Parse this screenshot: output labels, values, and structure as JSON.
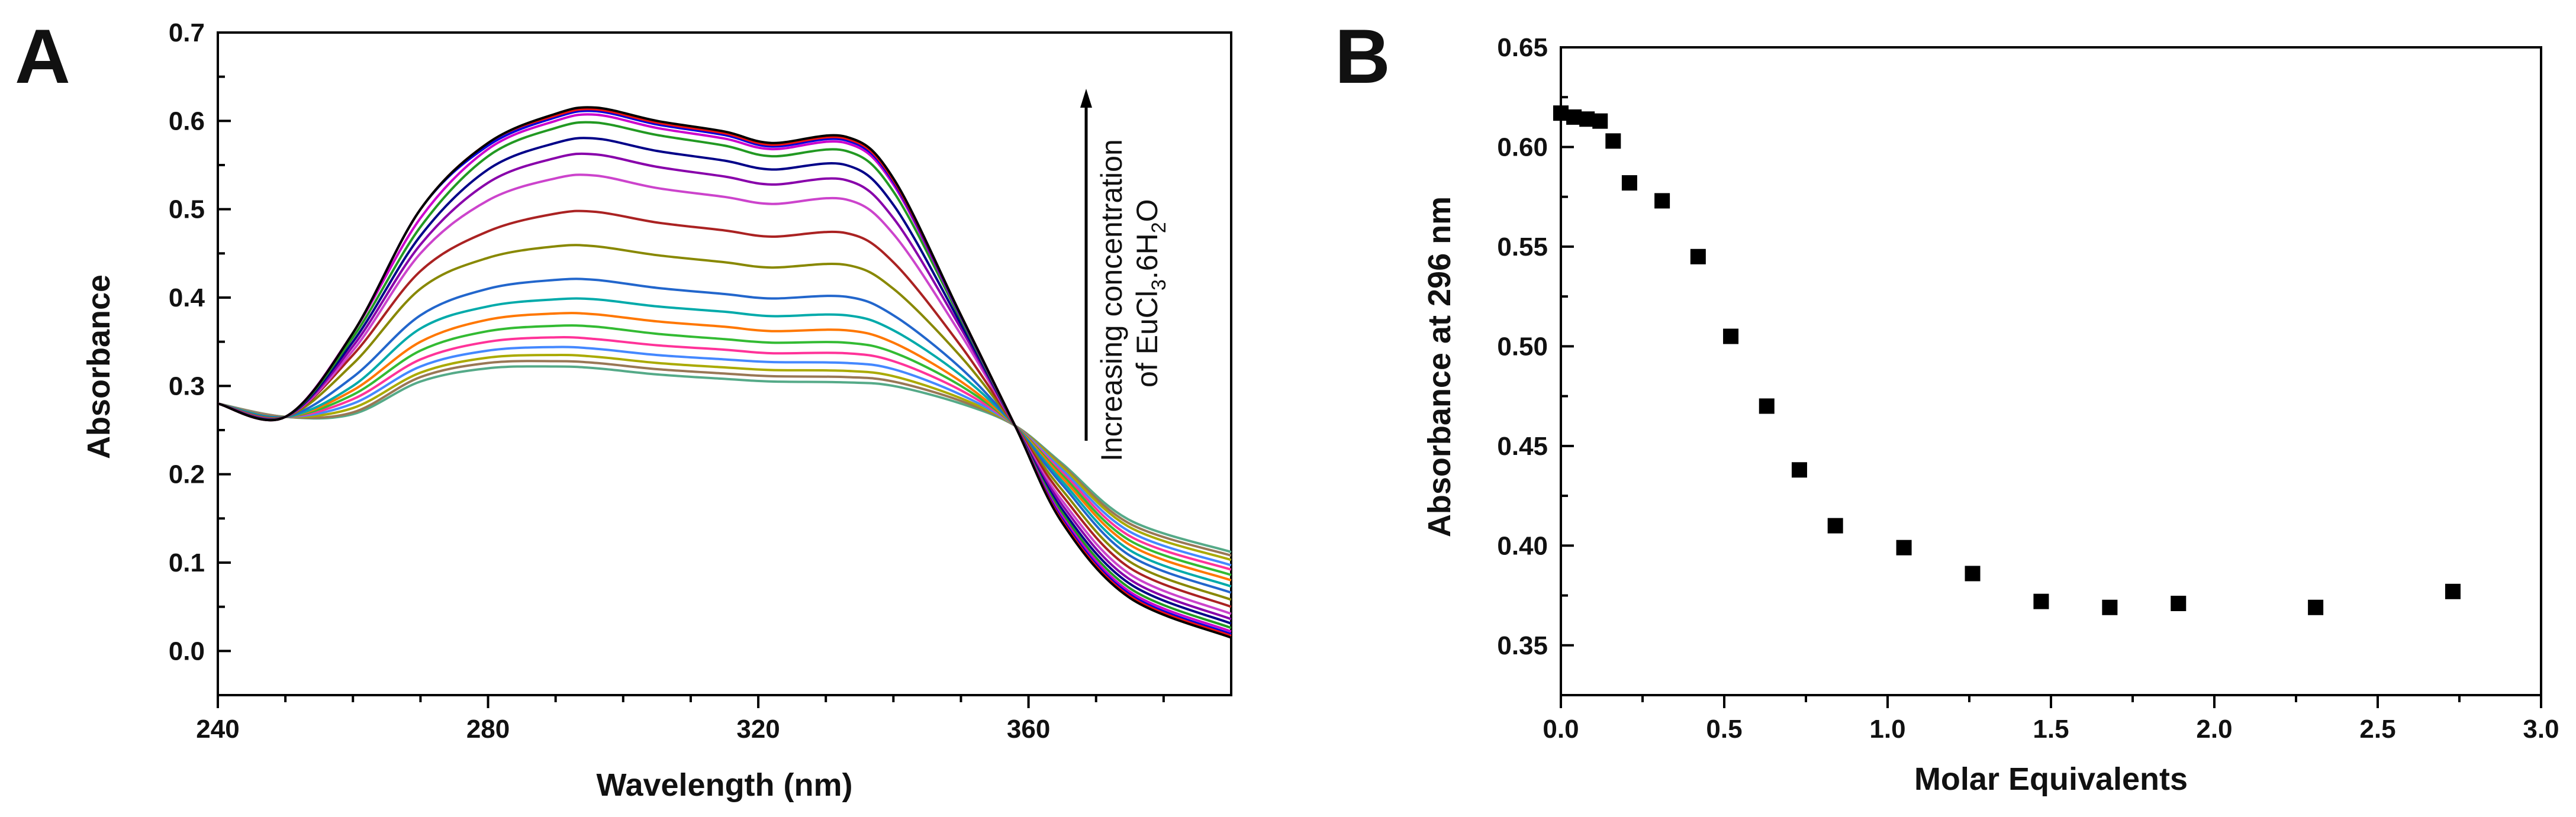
{
  "chart_data": [
    {
      "type": "line",
      "panel": "A",
      "xlabel": "Wavelength (nm)",
      "ylabel": "Absorbance",
      "xlim": [
        240,
        390
      ],
      "ylim": [
        -0.05,
        0.7
      ],
      "xticks": [
        240,
        280,
        320,
        360
      ],
      "xtick_labels": [
        "240",
        "280",
        "320",
        "360"
      ],
      "yticks": [
        0.0,
        0.1,
        0.2,
        0.3,
        0.4,
        0.5,
        0.6,
        0.7
      ],
      "ytick_labels": [
        "0.0",
        "0.1",
        "0.2",
        "0.3",
        "0.4",
        "0.5",
        "0.6",
        "0.7"
      ],
      "annotation": {
        "line1": "Increasing concentration",
        "line2_prefix": "of EuCl",
        "sub1": "3",
        "line2_mid": ".6H",
        "sub2": "2",
        "line2_suffix": "O"
      },
      "x": [
        240,
        250,
        260,
        270,
        280,
        290,
        296,
        305,
        315,
        322,
        333,
        340,
        350,
        358,
        365,
        375,
        390
      ],
      "series": [
        {
          "name": "s1",
          "color": "#000000",
          "values": [
            0.28,
            0.265,
            0.36,
            0.5,
            0.575,
            0.608,
            0.615,
            0.6,
            0.588,
            0.575,
            0.582,
            0.535,
            0.38,
            0.255,
            0.145,
            0.06,
            0.015
          ]
        },
        {
          "name": "s2",
          "color": "#ee1111",
          "values": [
            0.28,
            0.265,
            0.36,
            0.5,
            0.575,
            0.606,
            0.613,
            0.598,
            0.586,
            0.573,
            0.58,
            0.533,
            0.38,
            0.255,
            0.147,
            0.062,
            0.017
          ]
        },
        {
          "name": "s3",
          "color": "#0000dd",
          "values": [
            0.28,
            0.265,
            0.36,
            0.5,
            0.572,
            0.604,
            0.611,
            0.596,
            0.584,
            0.571,
            0.578,
            0.531,
            0.379,
            0.255,
            0.149,
            0.064,
            0.019
          ]
        },
        {
          "name": "s4",
          "color": "#cc00cc",
          "values": [
            0.28,
            0.265,
            0.36,
            0.49,
            0.568,
            0.6,
            0.607,
            0.592,
            0.58,
            0.568,
            0.575,
            0.528,
            0.378,
            0.255,
            0.152,
            0.067,
            0.022
          ]
        },
        {
          "name": "s5",
          "color": "#229922",
          "values": [
            0.28,
            0.265,
            0.355,
            0.48,
            0.56,
            0.592,
            0.598,
            0.584,
            0.572,
            0.56,
            0.566,
            0.52,
            0.375,
            0.255,
            0.156,
            0.071,
            0.026
          ]
        },
        {
          "name": "s6",
          "color": "#000088",
          "values": [
            0.28,
            0.265,
            0.35,
            0.47,
            0.545,
            0.575,
            0.58,
            0.566,
            0.555,
            0.545,
            0.55,
            0.505,
            0.37,
            0.255,
            0.16,
            0.076,
            0.031
          ]
        },
        {
          "name": "s7",
          "color": "#8800aa",
          "values": [
            0.28,
            0.265,
            0.345,
            0.46,
            0.53,
            0.558,
            0.562,
            0.548,
            0.537,
            0.528,
            0.533,
            0.49,
            0.365,
            0.255,
            0.165,
            0.081,
            0.036
          ]
        },
        {
          "name": "s8",
          "color": "#cc44cc",
          "values": [
            0.28,
            0.265,
            0.34,
            0.45,
            0.51,
            0.535,
            0.538,
            0.524,
            0.514,
            0.506,
            0.511,
            0.472,
            0.358,
            0.255,
            0.17,
            0.087,
            0.042
          ]
        },
        {
          "name": "s9",
          "color": "#aa2222",
          "values": [
            0.28,
            0.265,
            0.335,
            0.43,
            0.475,
            0.495,
            0.497,
            0.485,
            0.476,
            0.469,
            0.473,
            0.44,
            0.345,
            0.255,
            0.176,
            0.094,
            0.05
          ]
        },
        {
          "name": "s10",
          "color": "#888800",
          "values": [
            0.28,
            0.265,
            0.325,
            0.41,
            0.445,
            0.458,
            0.458,
            0.448,
            0.44,
            0.434,
            0.437,
            0.41,
            0.333,
            0.255,
            0.182,
            0.101,
            0.058
          ]
        },
        {
          "name": "s11",
          "color": "#2266cc",
          "values": [
            0.28,
            0.265,
            0.31,
            0.38,
            0.41,
            0.42,
            0.42,
            0.411,
            0.404,
            0.399,
            0.401,
            0.38,
            0.32,
            0.255,
            0.188,
            0.108,
            0.066
          ]
        },
        {
          "name": "s12",
          "color": "#00aaaa",
          "values": [
            0.28,
            0.265,
            0.3,
            0.365,
            0.39,
            0.398,
            0.398,
            0.39,
            0.384,
            0.379,
            0.38,
            0.363,
            0.312,
            0.255,
            0.192,
            0.114,
            0.073
          ]
        },
        {
          "name": "s13",
          "color": "#ff7700",
          "values": [
            0.28,
            0.265,
            0.295,
            0.35,
            0.375,
            0.382,
            0.381,
            0.373,
            0.367,
            0.362,
            0.363,
            0.349,
            0.305,
            0.255,
            0.196,
            0.12,
            0.08
          ]
        },
        {
          "name": "s14",
          "color": "#33bb33",
          "values": [
            0.28,
            0.265,
            0.29,
            0.34,
            0.362,
            0.368,
            0.367,
            0.359,
            0.353,
            0.349,
            0.349,
            0.338,
            0.3,
            0.255,
            0.199,
            0.125,
            0.086
          ]
        },
        {
          "name": "s15",
          "color": "#ff3399",
          "values": [
            0.28,
            0.265,
            0.285,
            0.33,
            0.35,
            0.355,
            0.353,
            0.346,
            0.341,
            0.337,
            0.337,
            0.328,
            0.295,
            0.255,
            0.202,
            0.13,
            0.092
          ]
        },
        {
          "name": "s16",
          "color": "#4488ff",
          "values": [
            0.28,
            0.265,
            0.28,
            0.322,
            0.34,
            0.344,
            0.342,
            0.335,
            0.33,
            0.327,
            0.326,
            0.319,
            0.29,
            0.255,
            0.205,
            0.135,
            0.097
          ]
        },
        {
          "name": "s17",
          "color": "#aaaa00",
          "values": [
            0.28,
            0.265,
            0.275,
            0.315,
            0.332,
            0.335,
            0.333,
            0.326,
            0.321,
            0.318,
            0.317,
            0.311,
            0.286,
            0.255,
            0.208,
            0.14,
            0.103
          ]
        },
        {
          "name": "s18",
          "color": "#997755",
          "values": [
            0.28,
            0.265,
            0.27,
            0.31,
            0.326,
            0.328,
            0.326,
            0.319,
            0.314,
            0.311,
            0.31,
            0.305,
            0.283,
            0.255,
            0.21,
            0.144,
            0.108
          ]
        },
        {
          "name": "s19",
          "color": "#55aa88",
          "values": [
            0.28,
            0.265,
            0.268,
            0.305,
            0.32,
            0.322,
            0.32,
            0.313,
            0.308,
            0.305,
            0.304,
            0.3,
            0.28,
            0.255,
            0.212,
            0.148,
            0.112
          ]
        }
      ]
    },
    {
      "type": "scatter",
      "panel": "B",
      "xlabel": "Molar Equivalents",
      "ylabel": "Absorbance at 296 nm",
      "xlim": [
        0.0,
        3.0
      ],
      "ylim": [
        0.325,
        0.65
      ],
      "xticks": [
        0.0,
        0.5,
        1.0,
        1.5,
        2.0,
        2.5,
        3.0
      ],
      "xtick_labels": [
        "0.0",
        "0.5",
        "1.0",
        "1.5",
        "2.0",
        "2.5",
        "3.0"
      ],
      "yticks": [
        0.35,
        0.4,
        0.45,
        0.5,
        0.55,
        0.6,
        0.65
      ],
      "ytick_labels": [
        "0.35",
        "0.40",
        "0.45",
        "0.50",
        "0.55",
        "0.60",
        "0.65"
      ],
      "marker_color": "#000000",
      "x": [
        0.0,
        0.04,
        0.08,
        0.12,
        0.16,
        0.21,
        0.31,
        0.42,
        0.52,
        0.63,
        0.73,
        0.84,
        1.05,
        1.26,
        1.47,
        1.68,
        1.89,
        2.31,
        2.73
      ],
      "y": [
        0.617,
        0.615,
        0.614,
        0.613,
        0.603,
        0.582,
        0.573,
        0.545,
        0.505,
        0.47,
        0.438,
        0.41,
        0.399,
        0.386,
        0.372,
        0.369,
        0.371,
        0.369,
        0.377
      ]
    }
  ]
}
